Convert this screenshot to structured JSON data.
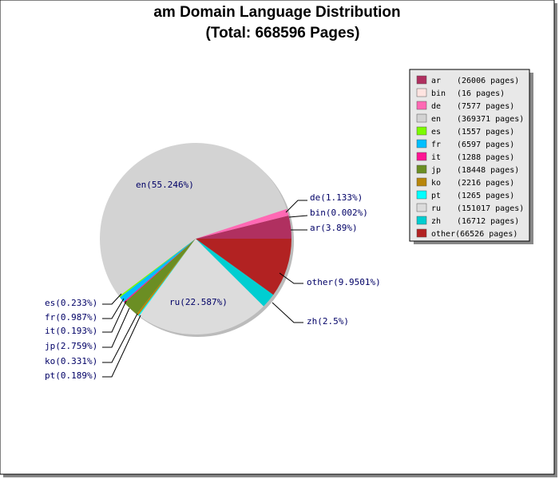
{
  "chart_data": {
    "type": "pie",
    "title_line1": "am Domain Language Distribution",
    "title_line2": "(Total: 668596 Pages)",
    "slices": [
      {
        "name": "ar",
        "pages": 26006,
        "percent_label": "ar(3.89%)",
        "legend_pages": "(26006 pages)",
        "color": "#b03060"
      },
      {
        "name": "bin",
        "pages": 16,
        "percent_label": "bin(0.002%)",
        "legend_pages": "(16 pages)",
        "color": "#ffe4e1"
      },
      {
        "name": "de",
        "pages": 7577,
        "percent_label": "de(1.133%)",
        "legend_pages": "(7577 pages)",
        "color": "#ff69b4"
      },
      {
        "name": "en",
        "pages": 369371,
        "percent_label": "en(55.246%)",
        "legend_pages": "(369371 pages)",
        "color": "#d3d3d3"
      },
      {
        "name": "es",
        "pages": 1557,
        "percent_label": "es(0.233%)",
        "legend_pages": "(1557 pages)",
        "color": "#7cfc00"
      },
      {
        "name": "fr",
        "pages": 6597,
        "percent_label": "fr(0.987%)",
        "legend_pages": "(6597 pages)",
        "color": "#00bfff"
      },
      {
        "name": "it",
        "pages": 1288,
        "percent_label": "it(0.193%)",
        "legend_pages": "(1288 pages)",
        "color": "#ff1493"
      },
      {
        "name": "jp",
        "pages": 18448,
        "percent_label": "jp(2.759%)",
        "legend_pages": "(18448 pages)",
        "color": "#6b8e23"
      },
      {
        "name": "ko",
        "pages": 2216,
        "percent_label": "ko(0.331%)",
        "legend_pages": "(2216 pages)",
        "color": "#b8860b"
      },
      {
        "name": "pt",
        "pages": 1265,
        "percent_label": "pt(0.189%)",
        "legend_pages": "(1265 pages)",
        "color": "#00ffff"
      },
      {
        "name": "ru",
        "pages": 151017,
        "percent_label": "ru(22.587%)",
        "legend_pages": "(151017 pages)",
        "color": "#dcdcdc"
      },
      {
        "name": "zh",
        "pages": 16712,
        "percent_label": "zh(2.5%)",
        "legend_pages": "(16712 pages)",
        "color": "#00ced1"
      },
      {
        "name": "other",
        "pages": 66526,
        "percent_label": "other(9.9501%)",
        "legend_pages": "(66526 pages)",
        "color": "#b22222",
        "legend_text": "other(66526 pages)"
      }
    ],
    "legend_placement": "right"
  }
}
